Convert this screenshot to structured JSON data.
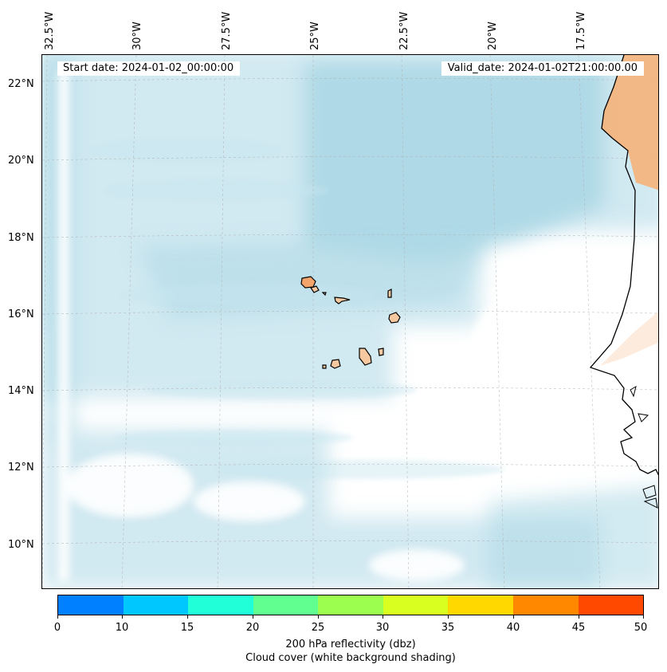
{
  "map": {
    "header": {
      "start_date": "Start date: 2024-01-02_00:00:00",
      "valid_date": "Valid_date: 2024-01-02T21:00:00.00"
    },
    "longitude_labels": [
      "32.5°W",
      "30°W",
      "27.5°W",
      "25°W",
      "22.5°W",
      "20°W",
      "17.5°W"
    ],
    "latitude_labels": [
      "22°N",
      "20°N",
      "18°N",
      "16°N",
      "14°N",
      "12°N",
      "10°N"
    ],
    "colors": {
      "cloud": "#add8e6",
      "land_fill": "#f5b27a",
      "coastline": "#000000",
      "gridline": "#b0b0b0"
    }
  },
  "colorbar": {
    "ticks": [
      "0",
      "10",
      "15",
      "20",
      "25",
      "30",
      "35",
      "40",
      "45",
      "50"
    ],
    "colors": [
      "#0080ff",
      "#00c8ff",
      "#20ffd8",
      "#60ff90",
      "#9cff50",
      "#d8ff20",
      "#ffd800",
      "#ff8800",
      "#ff4800"
    ],
    "label_line1": "200 hPa reflectivity (dbz)",
    "label_line2": "Cloud cover (white background shading)"
  }
}
